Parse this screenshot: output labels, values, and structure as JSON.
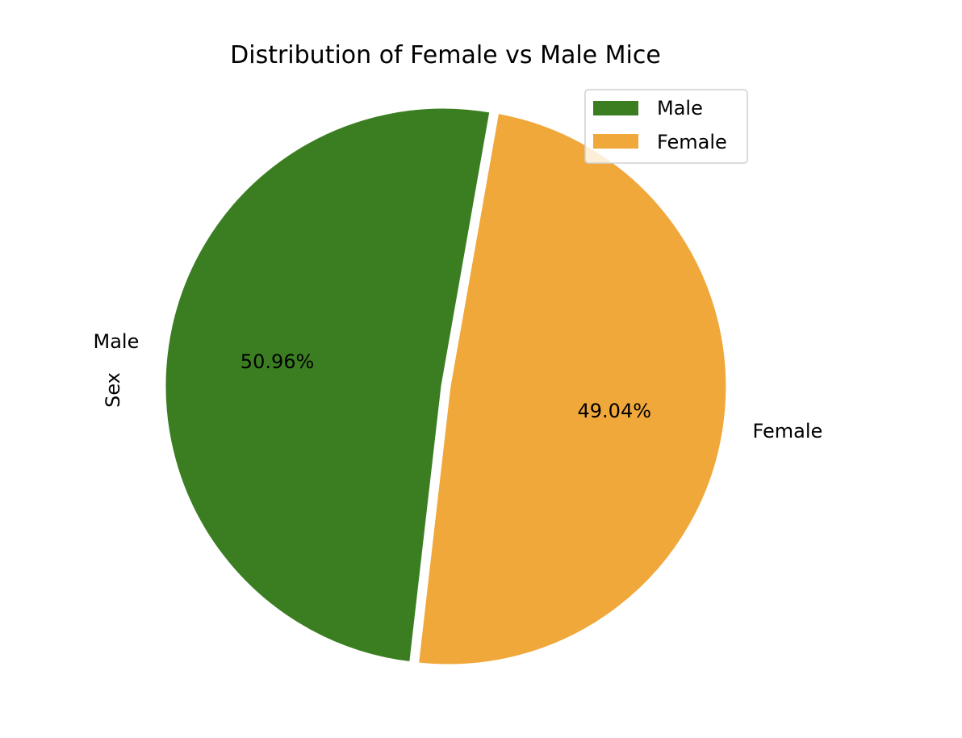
{
  "chart_data": {
    "type": "pie",
    "title": "Distribution of Female vs Male Mice",
    "ylabel": "Sex",
    "categories": [
      "Male",
      "Female"
    ],
    "values": [
      50.96,
      49.04
    ],
    "percent_labels": [
      "50.96%",
      "49.04%"
    ],
    "colors": [
      "#3b7e22",
      "#f0a83b"
    ],
    "explode": [
      0,
      0.02
    ],
    "start_angle_deg": 80,
    "legend": {
      "entries": [
        "Male",
        "Female"
      ],
      "placement": "top-right"
    }
  }
}
